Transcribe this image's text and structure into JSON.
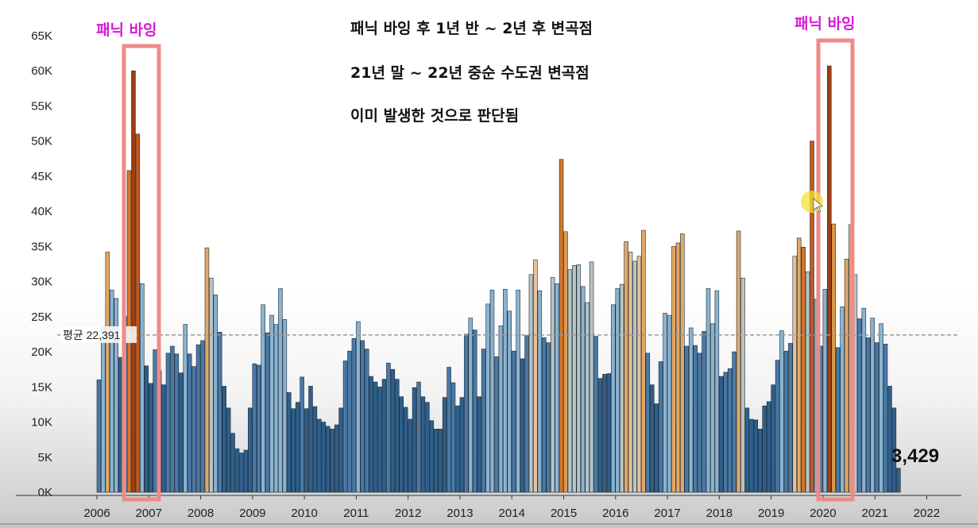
{
  "chart_data": {
    "type": "bar",
    "title": "",
    "xlabel": "",
    "ylabel": "",
    "ylim": [
      0,
      65000
    ],
    "yticks": [
      "0K",
      "5K",
      "10K",
      "15K",
      "20K",
      "25K",
      "30K",
      "35K",
      "40K",
      "45K",
      "50K",
      "55K",
      "60K",
      "65K"
    ],
    "xticks": [
      "2006",
      "2007",
      "2008",
      "2009",
      "2010",
      "2011",
      "2012",
      "2013",
      "2014",
      "2015",
      "2016",
      "2017",
      "2018",
      "2019",
      "2020",
      "2021",
      "2022"
    ],
    "average": {
      "label": "평균 22,391",
      "value": 22391
    },
    "last_value_label": "3,429",
    "annotations": {
      "lines": [
        "패닉 바잉 후 1년 반 ~ 2년 후 변곡점",
        "21년 말 ~ 22년 중순 수도권 변곡점",
        "이미 발생한 것으로 판단됨"
      ],
      "panic_left": "패닉 바잉",
      "panic_right": "패닉 바잉"
    },
    "series": [
      {
        "start": "2006-01",
        "values": [
          16000,
          23500,
          34200,
          28800,
          27600,
          19200,
          25000,
          45800,
          60000,
          51000,
          29700,
          18000,
          15500,
          20300,
          17300,
          15300,
          19800,
          20800,
          19700,
          17000,
          23900,
          19700,
          17900,
          21000,
          21600,
          34800,
          30500,
          28100,
          22800,
          15100,
          12000,
          8400,
          6200,
          5600,
          6000,
          12000,
          18300,
          18100,
          26700,
          22700,
          25200,
          23900,
          29000,
          24600,
          14200,
          11900,
          12800,
          16400,
          11900,
          15100,
          12200,
          10400,
          10000,
          9400,
          9000,
          9600,
          12000,
          18700,
          20100,
          21900,
          24300,
          21600,
          20400,
          16500,
          15700,
          15000,
          16100,
          18400,
          17500,
          16100,
          13600,
          12100,
          10400,
          14900,
          15700,
          13600,
          12800,
          10200,
          9000,
          9000,
          13500,
          17800,
          15600,
          12300,
          13500,
          22500,
          24800,
          23100,
          13600,
          20400,
          26800,
          28800,
          19300,
          23700,
          28900,
          25800,
          20100,
          28800,
          19000,
          22300,
          31000,
          33100,
          28700,
          22000,
          21300,
          30600,
          29700,
          47400,
          37100,
          31700,
          32300,
          32400,
          29300,
          27000,
          32800,
          22200,
          16200,
          16800,
          16900,
          26700,
          29000,
          29600,
          35700,
          34200,
          32900,
          33600,
          37300,
          19800,
          15300,
          12600,
          18600,
          25500,
          25200,
          35000,
          35500,
          36800,
          20800,
          23400,
          20900,
          19800,
          22900,
          29000,
          24000,
          28700,
          16500,
          17100,
          17600,
          20000,
          37200,
          30500,
          12000,
          10400,
          10300,
          9000,
          12300,
          12900,
          15300,
          18800,
          23000,
          20100,
          21200,
          33600,
          36200,
          34900,
          31400,
          50000,
          27500,
          20800,
          28900,
          60700,
          38200,
          20600,
          26400,
          33200,
          38100,
          31000,
          24700,
          26200,
          22000,
          24800,
          21300,
          24000,
          21100,
          15100,
          12000,
          3429
        ],
        "colors": [
          "#4a79a5",
          "#8ab3cf",
          "#e2a864",
          "#8ab3cf",
          "#8ab3cf",
          "#2f5f8a",
          "#8ab3cf",
          "#d4762c",
          "#9a3f14",
          "#c2591f",
          "#8ab3cf",
          "#2f5f8a",
          "#2f5f8a",
          "#4a79a5",
          "#2f5f8a",
          "#2f5f8a",
          "#4a79a5",
          "#4a79a5",
          "#4a79a5",
          "#2f5f8a",
          "#8ab3cf",
          "#4a79a5",
          "#4a79a5",
          "#4a79a5",
          "#4a79a5",
          "#e2a864",
          "#b8c3c4",
          "#8ab3cf",
          "#4a79a5",
          "#2f5f8a",
          "#2f5f8a",
          "#2f5f8a",
          "#2f5f8a",
          "#2f5f8a",
          "#2f5f8a",
          "#2f5f8a",
          "#4a79a5",
          "#4a79a5",
          "#8ab3cf",
          "#4a79a5",
          "#8ab3cf",
          "#8ab3cf",
          "#8ab3cf",
          "#8ab3cf",
          "#2f5f8a",
          "#2f5f8a",
          "#2f5f8a",
          "#4a79a5",
          "#2f5f8a",
          "#2f5f8a",
          "#2f5f8a",
          "#2f5f8a",
          "#2f5f8a",
          "#2f5f8a",
          "#2f5f8a",
          "#2f5f8a",
          "#2f5f8a",
          "#4a79a5",
          "#4a79a5",
          "#4a79a5",
          "#8ab3cf",
          "#4a79a5",
          "#4a79a5",
          "#2f5f8a",
          "#2f5f8a",
          "#2f5f8a",
          "#2f5f8a",
          "#4a79a5",
          "#2f5f8a",
          "#2f5f8a",
          "#2f5f8a",
          "#2f5f8a",
          "#2f5f8a",
          "#2f5f8a",
          "#4a79a5",
          "#2f5f8a",
          "#2f5f8a",
          "#2f5f8a",
          "#2f5f8a",
          "#2f5f8a",
          "#2f5f8a",
          "#4a79a5",
          "#4a79a5",
          "#2f5f8a",
          "#2f5f8a",
          "#4a79a5",
          "#8ab3cf",
          "#4a79a5",
          "#2f5f8a",
          "#4a79a5",
          "#8ab3cf",
          "#8ab3cf",
          "#4a79a5",
          "#8ab3cf",
          "#8ab3cf",
          "#8ab3cf",
          "#4a79a5",
          "#8ab3cf",
          "#2f5f8a",
          "#4a79a5",
          "#b8c3c4",
          "#e8c29a",
          "#8ab3cf",
          "#4a79a5",
          "#4a79a5",
          "#b8c3c4",
          "#8ab3cf",
          "#d4762c",
          "#e09a4a",
          "#b8c3c4",
          "#b8c3c4",
          "#b8c3c4",
          "#8ab3cf",
          "#b8c3c4",
          "#b8c3c4",
          "#4a79a5",
          "#2f5f8a",
          "#2f5f8a",
          "#2f5f8a",
          "#8ab3cf",
          "#8ab3cf",
          "#b8c3c4",
          "#e2a864",
          "#e8c29a",
          "#b8c3c4",
          "#e8c29a",
          "#e2a864",
          "#4a79a5",
          "#2f5f8a",
          "#2f5f8a",
          "#4a79a5",
          "#8ab3cf",
          "#8ab3cf",
          "#e2a864",
          "#e2a864",
          "#e2a864",
          "#4a79a5",
          "#8ab3cf",
          "#4a79a5",
          "#4a79a5",
          "#4a79a5",
          "#8ab3cf",
          "#8ab3cf",
          "#8ab3cf",
          "#2f5f8a",
          "#4a79a5",
          "#4a79a5",
          "#4a79a5",
          "#e2a864",
          "#b8c3c4",
          "#2f5f8a",
          "#2f5f8a",
          "#2f5f8a",
          "#2f5f8a",
          "#2f5f8a",
          "#2f5f8a",
          "#2f5f8a",
          "#4a79a5",
          "#8ab3cf",
          "#4a79a5",
          "#4a79a5",
          "#e8c29a",
          "#e2a864",
          "#d4762c",
          "#b8c3c4",
          "#c2591f",
          "#8ab3cf",
          "#4a79a5",
          "#8ab3cf",
          "#9a3f14",
          "#e09a4a",
          "#4a79a5",
          "#8ab3cf",
          "#e2a864",
          "#e2a864",
          "#b8c3c4",
          "#4a79a5",
          "#8ab3cf",
          "#4a79a5",
          "#8ab3cf",
          "#4a79a5",
          "#8ab3cf",
          "#4a79a5",
          "#2f5f8a",
          "#2f5f8a",
          "#2f5f8a"
        ]
      }
    ],
    "colors": {
      "avg_line": "#999999",
      "highlight_box": "#ef8a8a",
      "panic_text": "#d61ad6"
    }
  }
}
